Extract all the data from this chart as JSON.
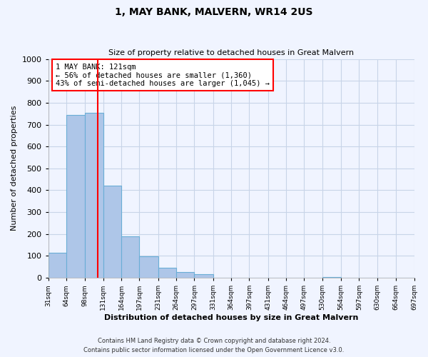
{
  "title": "1, MAY BANK, MALVERN, WR14 2US",
  "subtitle": "Size of property relative to detached houses in Great Malvern",
  "xlabel": "Distribution of detached houses by size in Great Malvern",
  "ylabel": "Number of detached properties",
  "bar_values": [
    113,
    745,
    755,
    420,
    188,
    97,
    46,
    25,
    15,
    0,
    0,
    0,
    0,
    0,
    0,
    5,
    0,
    0,
    0,
    0
  ],
  "bin_labels": [
    "31sqm",
    "64sqm",
    "98sqm",
    "131sqm",
    "164sqm",
    "197sqm",
    "231sqm",
    "264sqm",
    "297sqm",
    "331sqm",
    "364sqm",
    "397sqm",
    "431sqm",
    "464sqm",
    "497sqm",
    "530sqm",
    "564sqm",
    "597sqm",
    "630sqm",
    "664sqm",
    "697sqm"
  ],
  "bin_edges_values": [
    31,
    64,
    98,
    131,
    164,
    197,
    231,
    264,
    297,
    331,
    364,
    397,
    431,
    464,
    497,
    530,
    564,
    597,
    630,
    664,
    697
  ],
  "bar_color": "#aec6e8",
  "bar_edge_color": "#6aaed6",
  "property_line_x": 121,
  "property_line_color": "red",
  "annotation_line1": "1 MAY BANK: 121sqm",
  "annotation_line2": "← 56% of detached houses are smaller (1,360)",
  "annotation_line3": "43% of semi-detached houses are larger (1,045) →",
  "annotation_box_color": "white",
  "annotation_box_edge_color": "red",
  "ylim_max": 1000,
  "yticks": [
    0,
    100,
    200,
    300,
    400,
    500,
    600,
    700,
    800,
    900,
    1000
  ],
  "footer_line1": "Contains HM Land Registry data © Crown copyright and database right 2024.",
  "footer_line2": "Contains public sector information licensed under the Open Government Licence v3.0.",
  "background_color": "#f0f4ff",
  "grid_color": "#c8d4e8",
  "title_fontsize": 10,
  "subtitle_fontsize": 8
}
